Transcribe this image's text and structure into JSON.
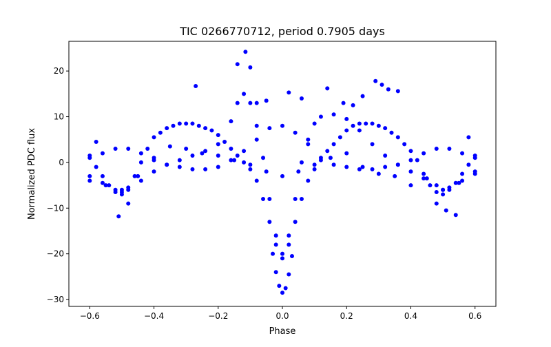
{
  "chart_data": {
    "type": "scatter",
    "title": "TIC 0266770712, period 0.7905 days",
    "xlabel": "Phase",
    "ylabel": "Normalized PDC flux",
    "xlim": [
      -0.665,
      0.665
    ],
    "ylim": [
      -31.5,
      26.5
    ],
    "xticks": [
      -0.6,
      -0.4,
      -0.2,
      0.0,
      0.2,
      0.4,
      0.6
    ],
    "xtick_labels": [
      "−0.6",
      "−0.4",
      "−0.2",
      "0.0",
      "0.2",
      "0.4",
      "0.6"
    ],
    "yticks": [
      -30,
      -20,
      -10,
      0,
      10,
      20
    ],
    "ytick_labels": [
      "−30",
      "−20",
      "−10",
      "0",
      "10",
      "20"
    ],
    "grid": false,
    "legend": "none",
    "marker_color": "#0000ff",
    "series": [
      {
        "description_free": true,
        "x": [
          -0.6,
          -0.58,
          -0.56,
          -0.54,
          -0.52,
          -0.5,
          -0.48,
          -0.46,
          -0.44,
          -0.42,
          -0.4,
          -0.38,
          -0.36,
          -0.34,
          -0.32,
          -0.3,
          -0.28,
          -0.26,
          -0.24,
          -0.22,
          -0.2,
          -0.18,
          -0.16,
          -0.14,
          -0.12,
          -0.1,
          -0.08,
          -0.06,
          -0.04,
          -0.02,
          0.0,
          0.02,
          0.04,
          0.06,
          0.08,
          0.1,
          0.12,
          0.14,
          0.16,
          0.18,
          0.2,
          0.22,
          0.24,
          0.26,
          0.28,
          0.3,
          0.32,
          0.34,
          0.36,
          0.38,
          0.4,
          0.42,
          0.44,
          0.46,
          0.48,
          0.5,
          0.52,
          0.54,
          0.56,
          0.58,
          0.6
        ],
        "y": [
          1.5,
          -1.0,
          -3.0,
          -5.0,
          -6.5,
          -7.0,
          -5.5,
          -3.0,
          0.0,
          3.0,
          5.5,
          6.5,
          7.5,
          8.0,
          8.5,
          8.5,
          8.5,
          8.0,
          7.5,
          7.0,
          6.0,
          4.5,
          3.0,
          1.5,
          0.0,
          -1.5,
          -4.0,
          -8.0,
          -13.0,
          -18.0,
          -21.0,
          -18.0,
          -13.0,
          -8.0,
          -4.0,
          -1.5,
          0.5,
          2.5,
          4.0,
          5.5,
          7.0,
          8.0,
          8.5,
          8.5,
          8.5,
          8.0,
          7.5,
          6.5,
          5.5,
          4.0,
          2.5,
          0.5,
          -2.5,
          -5.0,
          -6.5,
          -7.0,
          -6.0,
          -4.5,
          -2.5,
          -0.5,
          1.5
        ]
      },
      {
        "x": [
          -0.6,
          -0.56,
          -0.52,
          -0.48,
          -0.44,
          -0.4,
          -0.36,
          -0.32,
          -0.28,
          -0.24,
          -0.2,
          -0.16,
          -0.12,
          -0.08,
          -0.04,
          0.0,
          0.04,
          0.08,
          0.12,
          0.16,
          0.2,
          0.24,
          0.28,
          0.32,
          0.36,
          0.4,
          0.44,
          0.48,
          0.52,
          0.56,
          0.6
        ],
        "y": [
          1.0,
          2.0,
          3.0,
          3.0,
          2.0,
          0.5,
          -0.5,
          -1.0,
          -1.5,
          -1.5,
          -1.0,
          0.5,
          2.5,
          5.0,
          7.5,
          8.0,
          6.5,
          4.0,
          1.0,
          -0.5,
          -1.0,
          -1.5,
          -1.5,
          -1.0,
          -0.5,
          0.5,
          2.0,
          3.0,
          3.0,
          2.0,
          1.0
        ]
      },
      {
        "x": [
          -0.6,
          -0.56,
          -0.52,
          -0.5,
          -0.48,
          -0.44,
          -0.4,
          -0.36,
          -0.32,
          -0.28,
          -0.24,
          -0.2,
          -0.16,
          -0.14,
          -0.12,
          -0.1,
          -0.08,
          -0.06,
          -0.04,
          -0.02,
          0.0,
          0.02,
          0.04,
          0.06,
          0.08,
          0.1,
          0.12,
          0.16,
          0.2,
          0.24,
          0.28,
          0.32,
          0.36,
          0.4,
          0.44,
          0.48,
          0.5,
          0.52,
          0.56,
          0.6
        ],
        "y": [
          -3.0,
          -4.5,
          -6.0,
          -6.5,
          -6.0,
          -4.0,
          -2.0,
          -0.5,
          0.5,
          1.5,
          2.5,
          4.0,
          9.0,
          13.0,
          15.0,
          13.0,
          8.0,
          1.0,
          -8.0,
          -16.0,
          -20.0,
          -16.0,
          -8.0,
          0.0,
          5.0,
          8.5,
          10.0,
          10.5,
          9.5,
          7.0,
          4.0,
          1.5,
          -0.5,
          -2.0,
          -3.5,
          -5.0,
          -6.0,
          -5.5,
          -4.0,
          -2.5
        ]
      },
      {
        "x": [
          -0.01,
          0.0,
          0.01,
          -0.02,
          0.02,
          -0.03,
          0.03
        ],
        "y": [
          -27.0,
          -28.5,
          -27.5,
          -24.0,
          -24.5,
          -20.0,
          -20.5
        ]
      },
      {
        "x": [
          -0.6,
          -0.55,
          -0.5,
          -0.45,
          -0.4,
          -0.35,
          -0.3,
          -0.25,
          -0.2,
          -0.15,
          -0.1,
          -0.05,
          0.0,
          0.05,
          0.1,
          0.15,
          0.2,
          0.25,
          0.3,
          0.35,
          0.4,
          0.45,
          0.5,
          0.55,
          0.6
        ],
        "y": [
          -4.0,
          -5.0,
          -6.0,
          -3.0,
          1.0,
          3.5,
          3.0,
          2.0,
          1.5,
          0.5,
          -0.5,
          -2.0,
          -3.0,
          -2.0,
          -0.5,
          1.0,
          2.0,
          -1.0,
          -2.5,
          -3.0,
          -5.0,
          -3.5,
          -6.0,
          -4.5,
          -2.0
        ]
      },
      {
        "x": [
          -0.14,
          -0.115,
          -0.1,
          -0.27,
          0.14,
          0.29,
          0.25,
          0.31,
          0.33,
          0.36,
          0.22,
          -0.05,
          0.02,
          0.54,
          -0.58,
          0.58,
          -0.51,
          0.51,
          -0.48,
          0.48,
          0.19,
          -0.08,
          0.06
        ],
        "y": [
          21.5,
          24.2,
          20.8,
          16.7,
          16.2,
          17.8,
          14.5,
          17.0,
          16.0,
          15.6,
          12.5,
          13.5,
          15.3,
          -11.5,
          4.5,
          5.5,
          -11.8,
          -10.5,
          -9.0,
          -9.0,
          13.0,
          13.0,
          14.0
        ]
      }
    ]
  }
}
